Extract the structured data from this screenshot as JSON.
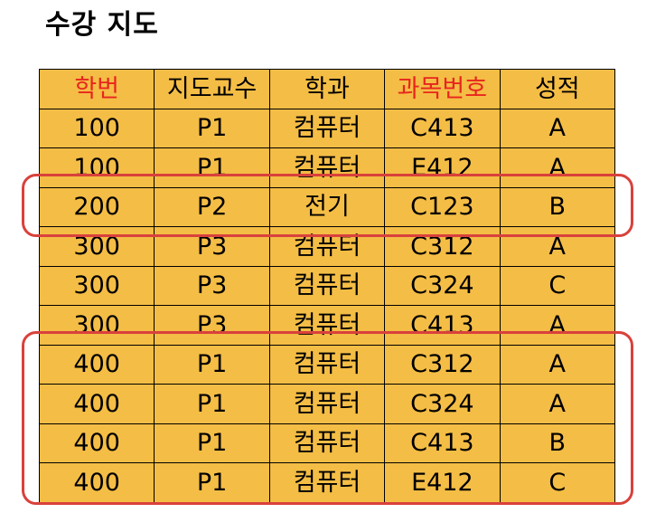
{
  "title": "수강 지도",
  "columns": [
    {
      "label": "학번",
      "key": true
    },
    {
      "label": "지도교수",
      "key": false
    },
    {
      "label": "학과",
      "key": false
    },
    {
      "label": "과목번호",
      "key": true
    },
    {
      "label": "성적",
      "key": false
    }
  ],
  "rows": [
    [
      "100",
      "P1",
      "컴퓨터",
      "C413",
      "A"
    ],
    [
      "100",
      "P1",
      "컴퓨터",
      "E412",
      "A"
    ],
    [
      "200",
      "P2",
      "전기",
      "C123",
      "B"
    ],
    [
      "300",
      "P3",
      "컴퓨터",
      "C312",
      "A"
    ],
    [
      "300",
      "P3",
      "컴퓨터",
      "C324",
      "C"
    ],
    [
      "300",
      "P3",
      "컴퓨터",
      "C413",
      "A"
    ],
    [
      "400",
      "P1",
      "컴퓨터",
      "C312",
      "A"
    ],
    [
      "400",
      "P1",
      "컴퓨터",
      "C324",
      "A"
    ],
    [
      "400",
      "P1",
      "컴퓨터",
      "C413",
      "B"
    ],
    [
      "400",
      "P1",
      "컴퓨터",
      "E412",
      "C"
    ]
  ],
  "colors": {
    "cell_fill": "#f4bd45",
    "key_header_text": "#e8251e",
    "highlight_outline": "#d9413c"
  }
}
